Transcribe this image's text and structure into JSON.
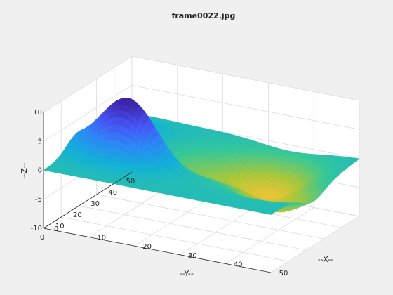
{
  "chart_data": {
    "type": "surface",
    "title": "frame0022.jpg",
    "xlabel": "--X--",
    "ylabel": "--Y--",
    "zlabel": "--Z--",
    "xlim": [
      0,
      50
    ],
    "ylim": [
      0,
      50
    ],
    "zlim": [
      -10,
      10
    ],
    "xticks": [
      "0",
      "10",
      "20",
      "30",
      "40",
      "50"
    ],
    "yticks": [
      "0",
      "10",
      "20",
      "30",
      "40",
      "50"
    ],
    "zticks": [
      "-10",
      "-5",
      "0",
      "5",
      "10"
    ],
    "grid": true,
    "colormap": "parula",
    "surface_features": [
      {
        "kind": "peak",
        "x": 12,
        "y": 18,
        "z": 10
      },
      {
        "kind": "peak",
        "x": 3,
        "y": 35,
        "z": 3
      },
      {
        "kind": "peak",
        "x": 3,
        "y": 20,
        "z": 2
      },
      {
        "kind": "trough",
        "x": 35,
        "y": 38,
        "z": -6
      },
      {
        "kind": "trough",
        "x": 42,
        "y": 24,
        "z": -5
      },
      {
        "kind": "trough",
        "x": 22,
        "y": 30,
        "z": -3
      }
    ]
  },
  "colors": {
    "background": "#f0f0f0",
    "axes_face": "#ffffff",
    "grid": "#dcdcdc",
    "axis_line": "#262626"
  }
}
